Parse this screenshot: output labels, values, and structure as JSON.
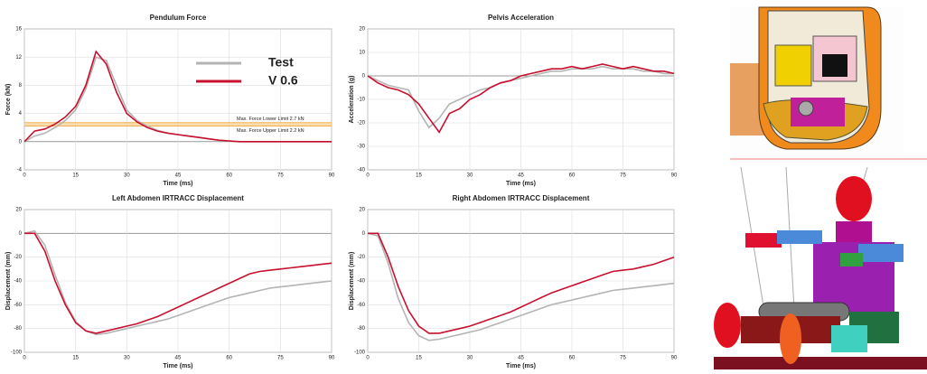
{
  "chart_data": [
    {
      "type": "line",
      "title": "Pendulum Force",
      "x_label": "Time (ms)",
      "y_label": "Force (kN)",
      "x": [
        0,
        3,
        6,
        9,
        12,
        15,
        18,
        21,
        24,
        27,
        30,
        33,
        36,
        39,
        42,
        45,
        48,
        51,
        54,
        57,
        60,
        63,
        66,
        69,
        72,
        75,
        78,
        81,
        84,
        87,
        90
      ],
      "series": [
        {
          "name": "Test",
          "color": "#b4b4b4",
          "values": [
            0,
            0.8,
            1.2,
            2,
            3,
            4.5,
            7.5,
            12,
            11.5,
            8,
            4.5,
            3,
            2.2,
            1.6,
            1.2,
            1,
            0.8,
            0.6,
            0.4,
            0.2,
            0.1,
            0,
            0,
            0,
            0,
            0,
            0,
            0,
            0,
            0,
            0
          ]
        },
        {
          "name": "V 0.6",
          "color": "#c8102e",
          "values": [
            0,
            1.5,
            1.8,
            2.5,
            3.5,
            5,
            8,
            12.8,
            11,
            7,
            4,
            2.8,
            2,
            1.5,
            1.2,
            1,
            0.8,
            0.6,
            0.4,
            0.2,
            0.1,
            0,
            0,
            0,
            0,
            0,
            0,
            0,
            0,
            0,
            0
          ]
        }
      ],
      "limits": [
        {
          "label": "Max. Force Lower Limit 2.7 kN",
          "value": 2.7
        },
        {
          "label": "Max. Force Upper Limit 2.2 kN",
          "value": 2.2
        }
      ],
      "legend": true,
      "grid": true,
      "xlim": [
        0,
        90
      ],
      "xticks": [
        0,
        15,
        30,
        45,
        60,
        75,
        90
      ],
      "ylim": [
        -4,
        16
      ],
      "yticks": [
        -4,
        0,
        4,
        8,
        12,
        16
      ]
    },
    {
      "type": "line",
      "title": "Pelvis Acceleration",
      "x_label": "Time (ms)",
      "y_label": "Acceleration (g)",
      "x": [
        0,
        3,
        6,
        9,
        12,
        15,
        18,
        21,
        24,
        27,
        30,
        33,
        36,
        39,
        42,
        45,
        48,
        51,
        54,
        57,
        60,
        63,
        66,
        69,
        72,
        75,
        78,
        81,
        84,
        87,
        90
      ],
      "series": [
        {
          "color": "#b4b4b4",
          "values": [
            0,
            -2,
            -4,
            -5,
            -6,
            -15,
            -22,
            -18,
            -12,
            -10,
            -8,
            -6,
            -5,
            -3,
            -2,
            -1,
            0,
            1,
            2,
            2,
            3,
            3,
            3,
            4,
            3,
            3,
            3,
            2,
            2,
            1,
            1
          ]
        },
        {
          "color": "#c8102e",
          "values": [
            0,
            -3,
            -5,
            -6,
            -8,
            -12,
            -18,
            -24,
            -16,
            -14,
            -10,
            -8,
            -5,
            -3,
            -2,
            0,
            1,
            2,
            3,
            3,
            4,
            3,
            4,
            5,
            4,
            3,
            4,
            3,
            2,
            2,
            1
          ]
        }
      ],
      "grid": true,
      "xlim": [
        0,
        90
      ],
      "xticks": [
        0,
        15,
        30,
        45,
        60,
        75,
        90
      ],
      "ylim": [
        -40,
        20
      ],
      "yticks": [
        -40,
        -30,
        -20,
        -10,
        0,
        10,
        20
      ]
    },
    {
      "type": "line",
      "title": "Left Abdomen IRTRACC Displacement",
      "x_label": "Time (ms)",
      "y_label": "Displacement (mm)",
      "x": [
        0,
        3,
        6,
        9,
        12,
        15,
        18,
        21,
        24,
        27,
        30,
        33,
        36,
        39,
        42,
        45,
        48,
        51,
        54,
        57,
        60,
        63,
        66,
        69,
        72,
        75,
        78,
        81,
        84,
        87,
        90
      ],
      "series": [
        {
          "color": "#b4b4b4",
          "values": [
            0,
            2,
            -10,
            -35,
            -58,
            -74,
            -82,
            -85,
            -84,
            -82,
            -80,
            -78,
            -76,
            -74,
            -72,
            -69,
            -66,
            -63,
            -60,
            -57,
            -54,
            -52,
            -50,
            -48,
            -46,
            -45,
            -44,
            -43,
            -42,
            -41,
            -40
          ]
        },
        {
          "color": "#c8102e",
          "values": [
            0,
            0,
            -15,
            -40,
            -60,
            -75,
            -82,
            -84,
            -82,
            -80,
            -78,
            -76,
            -73,
            -70,
            -66,
            -62,
            -58,
            -54,
            -50,
            -46,
            -42,
            -38,
            -34,
            -32,
            -31,
            -30,
            -29,
            -28,
            -27,
            -26,
            -25
          ]
        }
      ],
      "grid": true,
      "xlim": [
        0,
        90
      ],
      "xticks": [
        0,
        15,
        30,
        45,
        60,
        75,
        90
      ],
      "ylim": [
        -100,
        20
      ],
      "yticks": [
        -100,
        -80,
        -60,
        -40,
        -20,
        0,
        20
      ]
    },
    {
      "type": "line",
      "title": "Right Abdomen IRTRACC Displacement",
      "x_label": "Time (ms)",
      "y_label": "Displacement (mm)",
      "x": [
        0,
        3,
        6,
        9,
        12,
        15,
        18,
        21,
        24,
        27,
        30,
        33,
        36,
        39,
        42,
        45,
        48,
        51,
        54,
        57,
        60,
        63,
        66,
        69,
        72,
        75,
        78,
        81,
        84,
        87,
        90
      ],
      "series": [
        {
          "color": "#b4b4b4",
          "values": [
            0,
            -2,
            -25,
            -55,
            -75,
            -86,
            -90,
            -89,
            -87,
            -85,
            -83,
            -81,
            -78,
            -75,
            -72,
            -69,
            -66,
            -63,
            -60,
            -58,
            -56,
            -54,
            -52,
            -50,
            -48,
            -47,
            -46,
            -45,
            -44,
            -43,
            -42
          ]
        },
        {
          "color": "#c8102e",
          "values": [
            0,
            0,
            -20,
            -45,
            -65,
            -78,
            -84,
            -84,
            -82,
            -80,
            -78,
            -75,
            -72,
            -69,
            -66,
            -62,
            -58,
            -54,
            -50,
            -47,
            -44,
            -41,
            -38,
            -35,
            -32,
            -31,
            -30,
            -28,
            -26,
            -23,
            -20
          ]
        }
      ],
      "grid": true,
      "xlim": [
        0,
        90
      ],
      "xticks": [
        0,
        15,
        30,
        45,
        60,
        75,
        90
      ],
      "ylim": [
        -100,
        20
      ],
      "yticks": [
        -100,
        -80,
        -60,
        -40,
        -20,
        0,
        20
      ]
    }
  ]
}
